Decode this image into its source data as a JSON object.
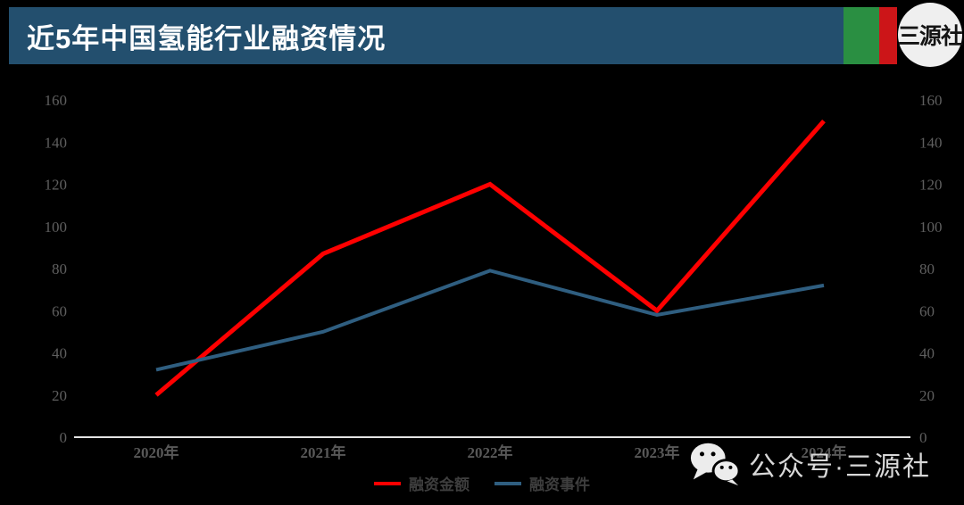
{
  "header": {
    "title": "近5年中国氢能行业融资情况",
    "logo_text": "三源社",
    "colors": {
      "band": "#234f6e",
      "green_bar": "#2a8f42",
      "red_bar": "#cc1518"
    }
  },
  "chart_data": {
    "type": "line",
    "title": "近5年中国氢能行业融资情况",
    "categories": [
      "2020年",
      "2021年",
      "2022年",
      "2023年",
      "2024年"
    ],
    "series": [
      {
        "name": "融资金额",
        "color": "#ff0000",
        "values": [
          20,
          87,
          120,
          60,
          150
        ]
      },
      {
        "name": "融资事件",
        "color": "#2f5e80",
        "values": [
          32,
          50,
          79,
          58,
          72
        ]
      }
    ],
    "ylim": [
      0,
      160
    ],
    "yticks": [
      0,
      20,
      40,
      60,
      80,
      100,
      120,
      140,
      160
    ],
    "dual_axis": true,
    "grid": false,
    "legend_position": "bottom",
    "background": "#000000",
    "axis_line_color": "#e3e3e3"
  },
  "watermark": {
    "text": "公众号·三源社",
    "icon": "wechat-icon"
  }
}
